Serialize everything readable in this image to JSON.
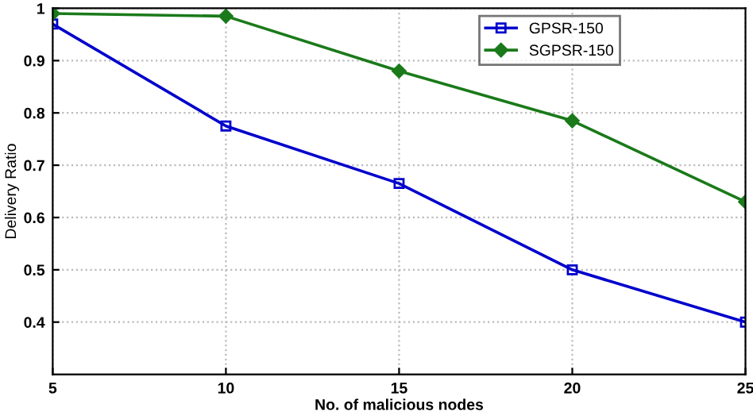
{
  "chart_data": {
    "type": "line",
    "xlabel": "No. of malicious nodes",
    "ylabel": "Delivery Ratio",
    "x": [
      5,
      10,
      15,
      20,
      25
    ],
    "series": [
      {
        "name": "GPSR-150",
        "color": "#0000cc",
        "values": [
          0.97,
          0.775,
          0.665,
          0.5,
          0.4
        ],
        "marker": "square"
      },
      {
        "name": "SGPSR-150",
        "color": "#1a7a1a",
        "values": [
          0.99,
          0.985,
          0.88,
          0.785,
          0.63
        ],
        "marker": "diamond"
      }
    ],
    "xlim": [
      5,
      25
    ],
    "xticks": [
      5,
      10,
      15,
      20,
      25
    ],
    "ylim": [
      0.3,
      1
    ],
    "yticks": [
      0.4,
      0.5,
      0.6,
      0.7,
      0.8,
      0.9,
      1
    ],
    "grid": true,
    "legend": "top right",
    "line_style": "solid"
  }
}
